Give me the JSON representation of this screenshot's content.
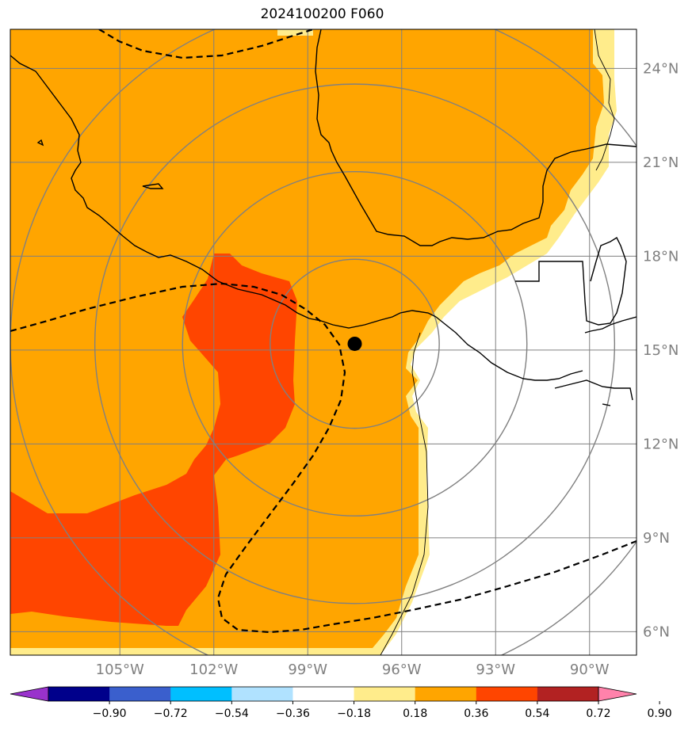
{
  "title": "2024100200 F060",
  "colors": {
    "land_outline": "#000000",
    "grid": "#808080",
    "range_ring": "#808080",
    "contour": "#000000",
    "storm_center": "#000000"
  },
  "map": {
    "lat_range": [
      5.25,
      25.25
    ],
    "lon_range": [
      -108.5,
      -88.5
    ],
    "lat_gridlines": [
      6,
      9,
      12,
      15,
      18,
      21,
      24
    ],
    "lon_gridlines": [
      -105,
      -102,
      -99,
      -96,
      -93,
      -90
    ],
    "lat_labels": [
      "6°N",
      "9°N",
      "12°N",
      "15°N",
      "18°N",
      "21°N",
      "24°N"
    ],
    "lon_labels": [
      "105°W",
      "102°W",
      "99°W",
      "96°W",
      "93°W",
      "90°W"
    ],
    "storm_center": {
      "lon": -97.5,
      "lat": 15.2
    },
    "range_rings_deg": [
      2.7,
      5.5,
      8.3,
      11.0
    ]
  },
  "colorbar": {
    "levels": [
      "−0.90",
      "−0.72",
      "−0.54",
      "−0.36",
      "−0.18",
      "0.18",
      "0.36",
      "0.54",
      "0.72",
      "0.90"
    ],
    "colors": [
      "#9932cc",
      "#00008b",
      "#3a5fcd",
      "#00bfff",
      "#b0e2ff",
      "#ffffff",
      "#ffec8b",
      "#ffa500",
      "#ff4500",
      "#b22222",
      "#ff82ab"
    ]
  },
  "fields": {
    "light_yellow": "#ffec8b",
    "orange": "#ffa500",
    "red_orange": "#ff4500"
  }
}
